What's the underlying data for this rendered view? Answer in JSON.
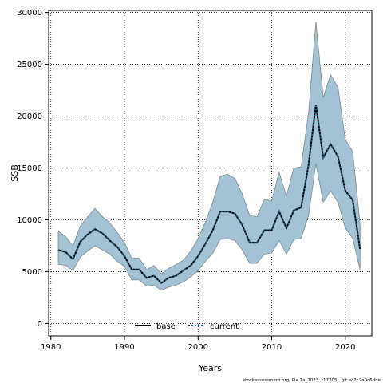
{
  "chart_data": {
    "type": "area",
    "xlabel": "Years",
    "ylabel": "SSB",
    "xlim": [
      1979.7,
      2023.6
    ],
    "ylim": [
      -1200,
      30200
    ],
    "xticks": [
      1980,
      1990,
      2000,
      2010,
      2020
    ],
    "yticks": [
      0,
      5000,
      10000,
      15000,
      20000,
      25000,
      30000
    ],
    "grid": true,
    "legend_position": "bottom-center",
    "colors": {
      "band": "#a3c3d5",
      "band_edge": "#7a8a94",
      "base": "#000000",
      "current": "#1a5e7a"
    },
    "x": [
      1981,
      1982,
      1983,
      1984,
      1985,
      1986,
      1987,
      1988,
      1989,
      1990,
      1991,
      1992,
      1993,
      1994,
      1995,
      1996,
      1997,
      1998,
      1999,
      2000,
      2001,
      2002,
      2003,
      2004,
      2005,
      2006,
      2007,
      2008,
      2009,
      2010,
      2011,
      2012,
      2013,
      2014,
      2015,
      2016,
      2017,
      2018,
      2019,
      2020,
      2021,
      2022
    ],
    "band_upper": [
      8900,
      8400,
      7500,
      9400,
      10300,
      11100,
      10300,
      9700,
      8800,
      7800,
      6300,
      6300,
      5200,
      5600,
      4800,
      5300,
      5700,
      6100,
      7000,
      8200,
      9800,
      11700,
      14200,
      14400,
      14000,
      12500,
      10400,
      10300,
      12000,
      11800,
      14600,
      12300,
      15000,
      15100,
      20300,
      29100,
      21800,
      24000,
      22800,
      17700,
      16600,
      9600
    ],
    "band_lower": [
      5700,
      5600,
      5100,
      6400,
      7000,
      7500,
      7100,
      6700,
      6000,
      5500,
      4200,
      4200,
      3600,
      3700,
      3200,
      3500,
      3700,
      4000,
      4500,
      5100,
      6000,
      6800,
      8100,
      8200,
      8000,
      7100,
      5800,
      5800,
      6700,
      6800,
      8000,
      6700,
      8100,
      8200,
      10400,
      15400,
      11700,
      12800,
      11700,
      9200,
      8200,
      5200
    ],
    "series": [
      {
        "name": "base",
        "values": [
          7100,
          6900,
          6200,
          7900,
          8600,
          9100,
          8700,
          8000,
          7400,
          6500,
          5200,
          5200,
          4400,
          4600,
          3900,
          4400,
          4600,
          5100,
          5600,
          6500,
          7700,
          9000,
          10800,
          10800,
          10600,
          9500,
          7800,
          7800,
          9000,
          9000,
          10800,
          9200,
          10900,
          11200,
          15300,
          21100,
          16000,
          17300,
          16100,
          12800,
          11900,
          7200
        ]
      },
      {
        "name": "current",
        "values": [
          7100,
          6900,
          6200,
          7900,
          8600,
          9100,
          8700,
          8000,
          7400,
          6500,
          5200,
          5200,
          4400,
          4600,
          3900,
          4400,
          4600,
          5100,
          5600,
          6500,
          7700,
          9000,
          10800,
          10800,
          10600,
          9500,
          7800,
          7800,
          9000,
          9000,
          10800,
          9200,
          10900,
          11200,
          15300,
          21100,
          16000,
          17300,
          16100,
          12800,
          11900,
          7200
        ]
      }
    ]
  },
  "footer": "stockassessment.org, Ple.7a_2023, r17205 , git:ec2c2a0c6dde"
}
